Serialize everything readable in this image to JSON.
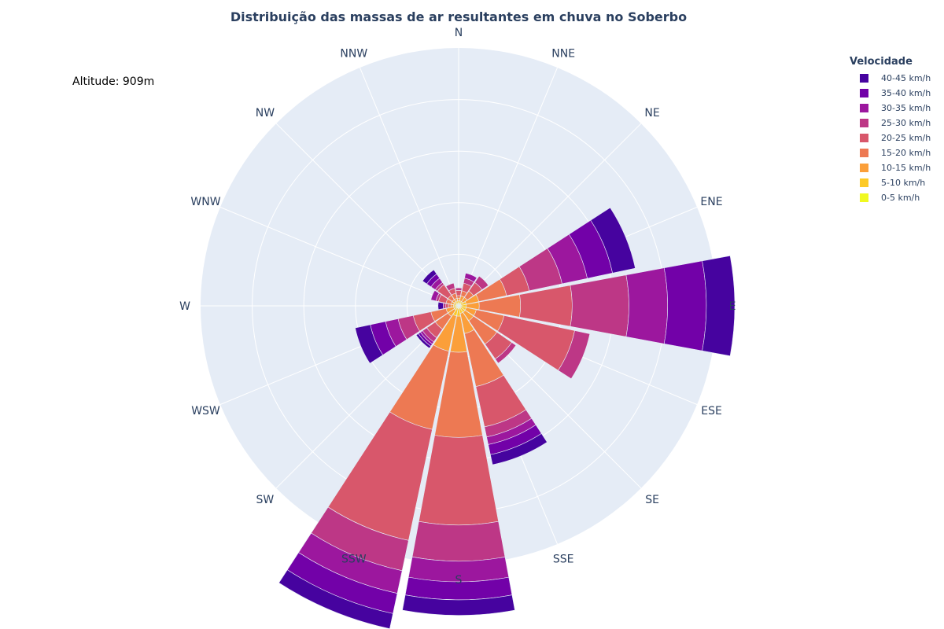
{
  "chart_data": {
    "type": "barpolar",
    "title": "Distribuição das massas de ar resultantes em chuva no Soberbo",
    "annotation": "Altitude: 909m",
    "directions": [
      "N",
      "NNE",
      "NE",
      "ENE",
      "E",
      "ESE",
      "SE",
      "SSE",
      "S",
      "SSW",
      "SW",
      "WSW",
      "W",
      "WNW",
      "NW",
      "NNW"
    ],
    "radial_range": [
      0,
      100
    ],
    "grid": true,
    "legend_title": "Velocidade",
    "legend_position": "top-right",
    "series": [
      {
        "name": "0-5 km/h",
        "color": "#f0f921",
        "values": [
          1,
          1,
          1,
          1,
          1,
          1,
          1,
          1,
          1,
          1,
          1,
          1,
          1,
          1,
          1,
          1
        ]
      },
      {
        "name": "5-10 km/h",
        "color": "#fdca26",
        "values": [
          1,
          1,
          1,
          2,
          2,
          2,
          2,
          2,
          3,
          3,
          1,
          1,
          1,
          1,
          1,
          1
        ]
      },
      {
        "name": "10-15 km/h",
        "color": "#fb9f3a",
        "values": [
          1,
          2,
          2,
          5,
          5,
          4,
          4,
          8,
          14,
          14,
          3,
          3,
          1,
          1,
          1,
          1
        ]
      },
      {
        "name": "15-20 km/h",
        "color": "#ed7953",
        "values": [
          1,
          2,
          3,
          11,
          16,
          11,
          11,
          21,
          33,
          31,
          6,
          6,
          1,
          2,
          2,
          2
        ]
      },
      {
        "name": "20-25 km/h",
        "color": "#d8576b",
        "values": [
          2,
          3,
          4,
          9,
          20,
          28,
          7,
          16,
          34,
          44,
          4,
          7,
          1,
          3,
          5,
          2
        ]
      },
      {
        "name": "25-30 km/h",
        "color": "#bd3786",
        "values": [
          1,
          2,
          3,
          13,
          22,
          6,
          2,
          4,
          14,
          12,
          2,
          6,
          1,
          1,
          1,
          2
        ]
      },
      {
        "name": "30-35 km/h",
        "color": "#9c179e",
        "values": [
          0,
          2,
          0,
          10,
          15,
          0,
          0,
          3,
          8,
          9,
          1,
          5,
          0,
          2,
          2,
          0
        ]
      },
      {
        "name": "35-40 km/h",
        "color": "#7201a8",
        "values": [
          0,
          0,
          0,
          10,
          15,
          0,
          0,
          4,
          7,
          8,
          1,
          6,
          0,
          0,
          2,
          0
        ]
      },
      {
        "name": "40-45 km/h",
        "color": "#46039f",
        "values": [
          0,
          0,
          0,
          9,
          11,
          0,
          0,
          4,
          6,
          6,
          1,
          6,
          2,
          0,
          2,
          0
        ]
      }
    ]
  }
}
